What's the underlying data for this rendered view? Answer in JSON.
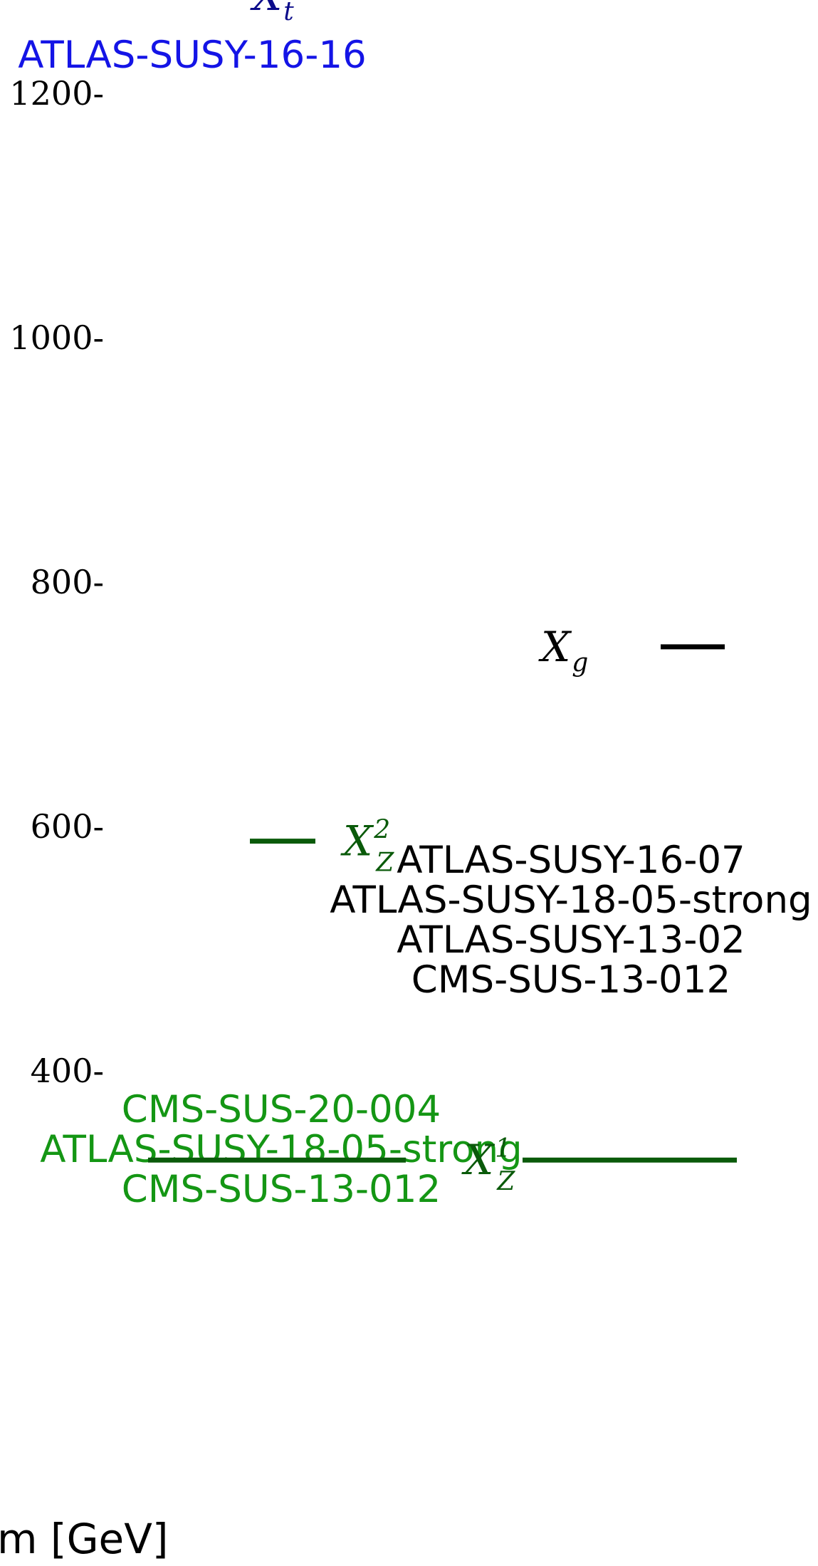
{
  "chart_data": {
    "type": "mass-spectrum",
    "ylabel": "m [GeV]",
    "ylim": [
      200,
      1250
    ],
    "yticks": [
      400,
      600,
      800,
      1000,
      1200
    ],
    "particles": [
      {
        "symbol": "X",
        "subscript": "t",
        "superscript": "",
        "mass": 1280,
        "color": "#0b0b8a",
        "label_color": "#1414e6",
        "label_side": "right",
        "analyses": [
          "ATLAS-SUSY-16-16"
        ]
      },
      {
        "symbol": "X",
        "subscript": "g",
        "superscript": "",
        "mass": 747,
        "color": "#000000",
        "label_color": "#000000",
        "label_side": "left",
        "analyses": [
          "ATLAS-SUSY-16-07",
          "ATLAS-SUSY-18-05-strong",
          "ATLAS-SUSY-13-02",
          "CMS-SUS-13-012"
        ]
      },
      {
        "symbol": "X",
        "subscript": "Z",
        "superscript": "2",
        "mass": 588,
        "color": "#0a5a0a",
        "label_color": "#149614",
        "label_side": "right",
        "analyses": [
          "CMS-SUS-20-004",
          "ATLAS-SUSY-18-05-strong",
          "CMS-SUS-13-012"
        ]
      },
      {
        "symbol": "X",
        "subscript": "Z",
        "superscript": "1",
        "mass": 327,
        "color": "#0a5a0a",
        "label_color": "#149614",
        "label_side": "right",
        "analyses": []
      }
    ]
  }
}
